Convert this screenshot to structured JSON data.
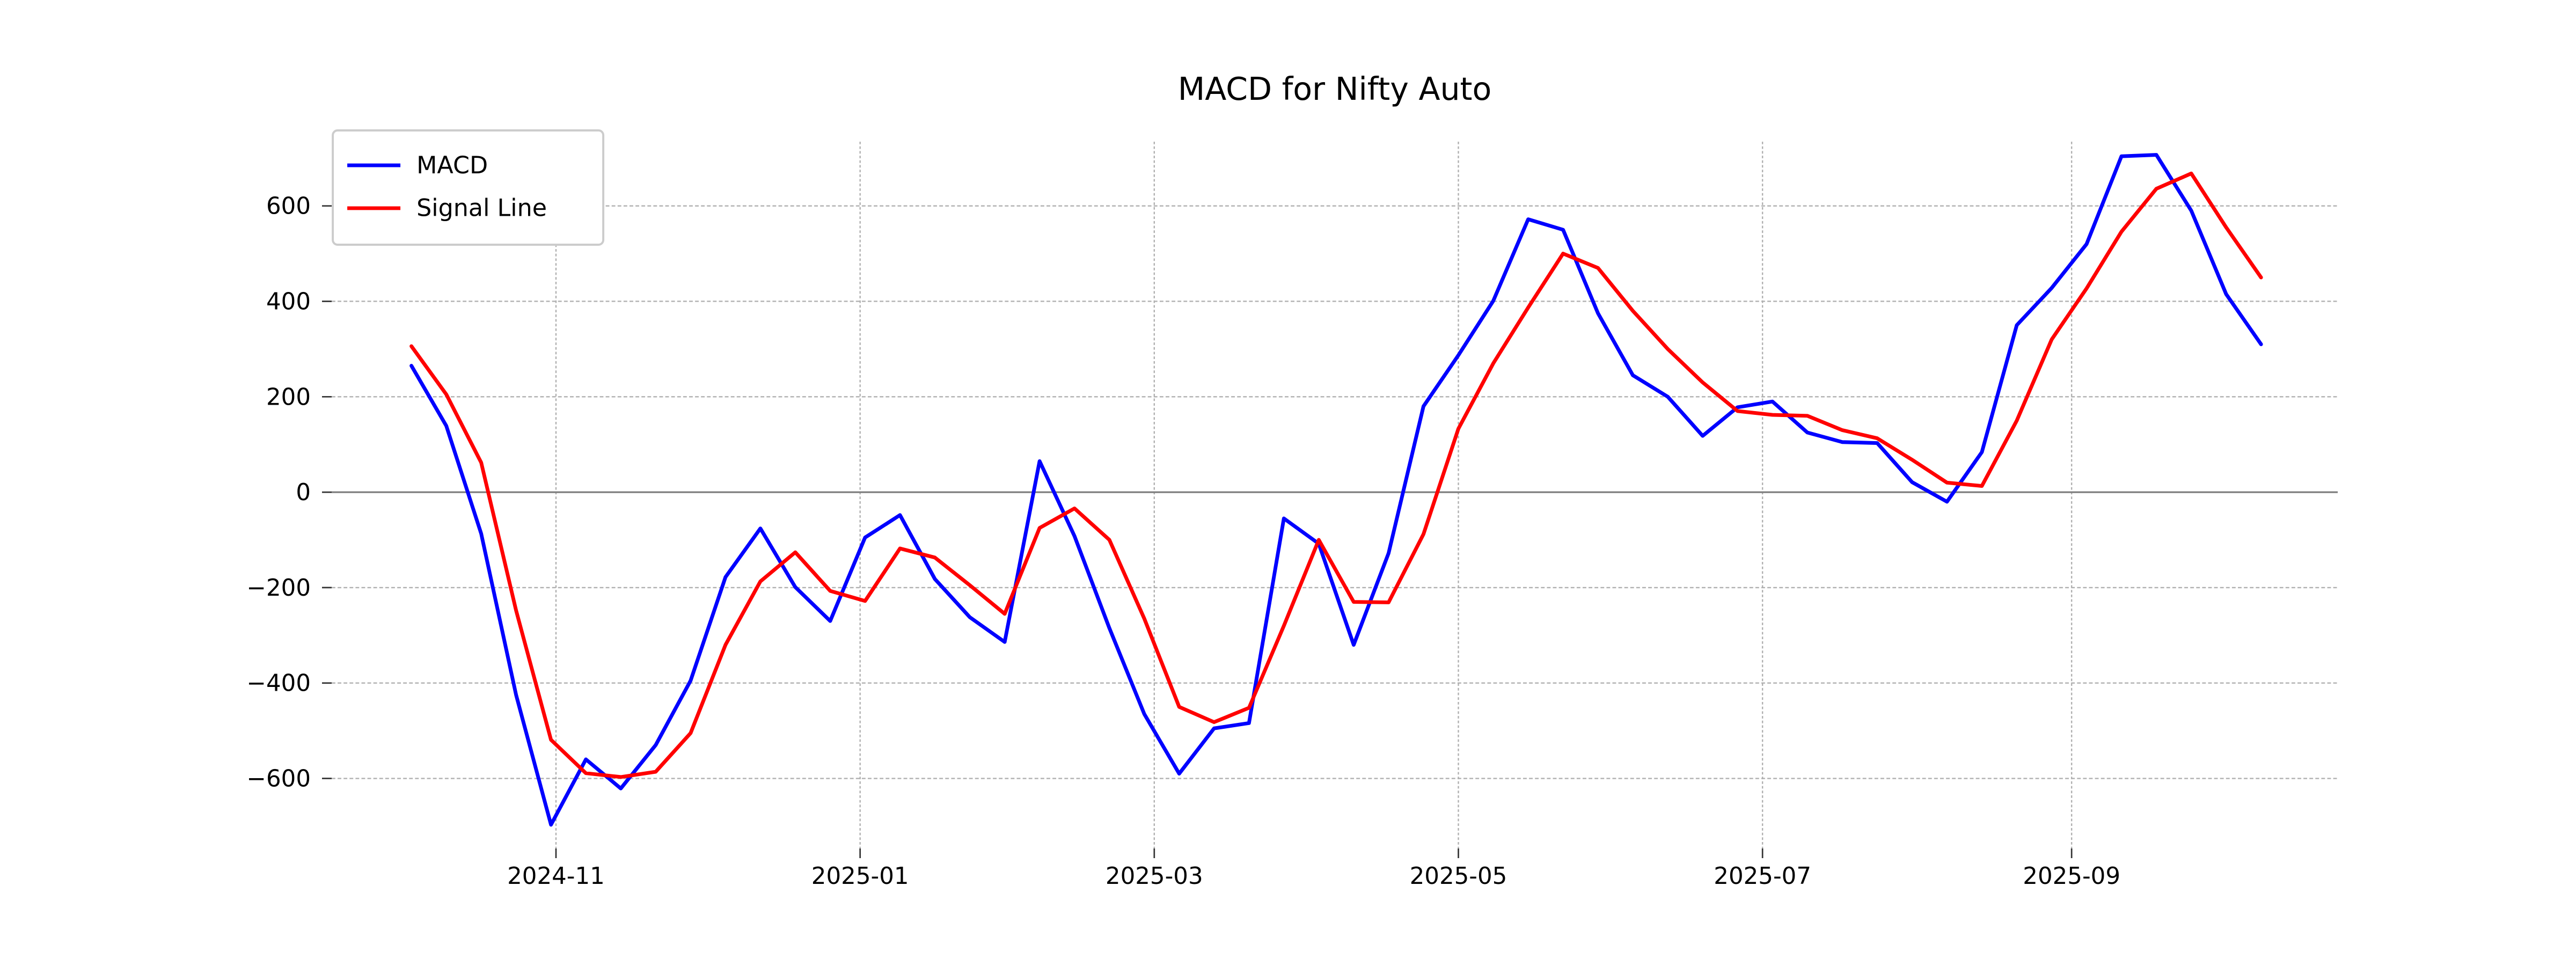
{
  "chart_data": {
    "type": "line",
    "title": "MACD for Nifty Auto",
    "xlabel": "",
    "ylabel": "",
    "grid": true,
    "zero_line": true,
    "legend_position": "upper left",
    "x_tick_labels": [
      "2024-11",
      "2025-01",
      "2025-03",
      "2025-05",
      "2025-07",
      "2025-09"
    ],
    "y_ticks": [
      600,
      400,
      200,
      0,
      -200,
      -400,
      -600
    ],
    "y_tick_labels": [
      "600",
      "400",
      "200",
      "0",
      "−200",
      "−400",
      "−600"
    ],
    "ylim": [
      -745,
      730
    ],
    "x_range": [
      "2024-10-03",
      "2025-10-09"
    ],
    "x": [
      "2024-10-03",
      "2024-10-10",
      "2024-10-17",
      "2024-10-24",
      "2024-10-31",
      "2024-11-07",
      "2024-11-14",
      "2024-11-21",
      "2024-11-28",
      "2024-12-05",
      "2024-12-12",
      "2024-12-19",
      "2024-12-26",
      "2025-01-02",
      "2025-01-09",
      "2025-01-16",
      "2025-01-23",
      "2025-01-30",
      "2025-02-06",
      "2025-02-13",
      "2025-02-20",
      "2025-02-27",
      "2025-03-06",
      "2025-03-13",
      "2025-03-20",
      "2025-03-27",
      "2025-04-03",
      "2025-04-10",
      "2025-04-17",
      "2025-04-24",
      "2025-05-01",
      "2025-05-08",
      "2025-05-15",
      "2025-05-22",
      "2025-05-29",
      "2025-06-05",
      "2025-06-12",
      "2025-06-19",
      "2025-06-26",
      "2025-07-03",
      "2025-07-10",
      "2025-07-17",
      "2025-07-24",
      "2025-07-31",
      "2025-08-07",
      "2025-08-14",
      "2025-08-21",
      "2025-08-28",
      "2025-09-04",
      "2025-09-11",
      "2025-09-18",
      "2025-09-25",
      "2025-10-02",
      "2025-10-09"
    ],
    "series": [
      {
        "name": "MACD",
        "color": "#0000ff",
        "values": [
          265,
          139,
          -87,
          -425,
          -697,
          -560,
          -621,
          -530,
          -395,
          -178,
          -76,
          -199,
          -270,
          -95,
          -48,
          -182,
          -262,
          -314,
          65,
          -92,
          -285,
          -465,
          -590,
          -495,
          -484,
          -55,
          -108,
          -320,
          -128,
          180,
          287,
          401,
          572,
          550,
          375,
          245,
          200,
          118,
          178,
          190,
          125,
          105,
          103,
          21,
          -20,
          84,
          350,
          428,
          520,
          704,
          707,
          590,
          415,
          310
        ]
      },
      {
        "name": "Signal Line",
        "color": "#ff0000",
        "values": [
          306,
          205,
          62,
          -248,
          -519,
          -589,
          -597,
          -586,
          -505,
          -320,
          -187,
          -126,
          -207,
          -228,
          -118,
          -137,
          -195,
          -255,
          -75,
          -34,
          -100,
          -265,
          -450,
          -482,
          -452,
          -280,
          -100,
          -230,
          -231,
          -88,
          133,
          270,
          387,
          500,
          470,
          380,
          300,
          230,
          170,
          162,
          160,
          130,
          113,
          68,
          20,
          13,
          150,
          320,
          427,
          546,
          636,
          668,
          555,
          450
        ]
      }
    ]
  }
}
